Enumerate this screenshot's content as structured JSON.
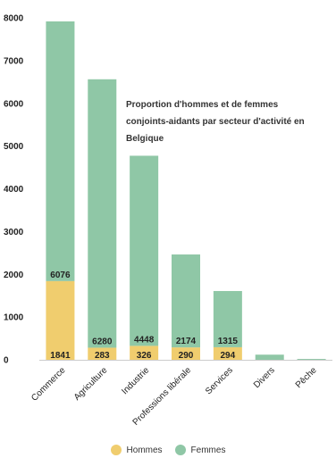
{
  "chart_data": {
    "type": "bar",
    "stacked": true,
    "title": "Proportion d'hommes et de femmes conjoints-aidants par secteur d'activité en Belgique",
    "categories": [
      "Commerce",
      "Agriculture",
      "Industrie",
      "Professions libérale",
      "Services",
      "Divers",
      "Pêche"
    ],
    "series": [
      {
        "name": "Hommes",
        "color": "#f0cd6e",
        "values": [
          1841,
          283,
          326,
          290,
          294,
          0,
          0
        ]
      },
      {
        "name": "Femmes",
        "color": "#8fc7a6",
        "values": [
          6076,
          6280,
          4448,
          2174,
          1315,
          120,
          20
        ]
      }
    ],
    "ylim": [
      0,
      8000
    ],
    "yticks": [
      0,
      1000,
      2000,
      3000,
      4000,
      5000,
      6000,
      7000,
      8000
    ],
    "data_labels": {
      "Hommes": [
        "1841",
        "283",
        "326",
        "290",
        "294",
        "",
        ""
      ],
      "Femmes": [
        "6076",
        "6280",
        "4448",
        "2174",
        "1315",
        "",
        ""
      ]
    },
    "grid": false,
    "legend_position": "bottom"
  }
}
